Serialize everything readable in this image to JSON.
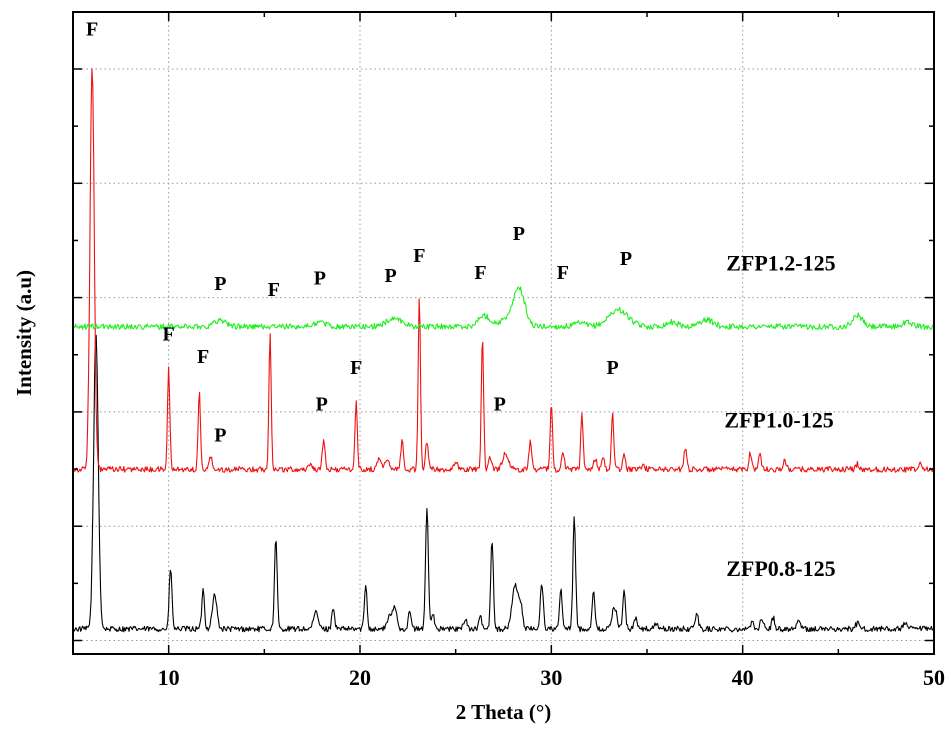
{
  "chart_data": {
    "type": "line",
    "xlabel": "2 Theta (°)",
    "ylabel": "Intensity (a.u)",
    "xlim": [
      5,
      50
    ],
    "x_ticks": [
      "10",
      "20",
      "30",
      "40",
      "50"
    ],
    "grid": true,
    "y_ticks_labeled": false,
    "series": [
      {
        "name": "ZFP0.8-125",
        "color": "#000000",
        "baseline": 0.0,
        "noise": 0.005,
        "peaks": [
          {
            "x": 6.2,
            "h": 0.53,
            "w": 0.12
          },
          {
            "x": 10.1,
            "h": 0.11,
            "w": 0.07
          },
          {
            "x": 11.8,
            "h": 0.07,
            "w": 0.07
          },
          {
            "x": 12.4,
            "h": 0.06,
            "w": 0.12
          },
          {
            "x": 15.6,
            "h": 0.16,
            "w": 0.07
          },
          {
            "x": 17.7,
            "h": 0.03,
            "w": 0.12
          },
          {
            "x": 18.6,
            "h": 0.04,
            "w": 0.07
          },
          {
            "x": 20.3,
            "h": 0.08,
            "w": 0.07
          },
          {
            "x": 21.5,
            "h": 0.02,
            "w": 0.1
          },
          {
            "x": 21.8,
            "h": 0.04,
            "w": 0.12
          },
          {
            "x": 22.6,
            "h": 0.03,
            "w": 0.08
          },
          {
            "x": 23.5,
            "h": 0.22,
            "w": 0.07
          },
          {
            "x": 23.8,
            "h": 0.03,
            "w": 0.08
          },
          {
            "x": 25.5,
            "h": 0.02,
            "w": 0.08
          },
          {
            "x": 26.3,
            "h": 0.02,
            "w": 0.08
          },
          {
            "x": 26.9,
            "h": 0.16,
            "w": 0.07
          },
          {
            "x": 28.1,
            "h": 0.08,
            "w": 0.15
          },
          {
            "x": 28.4,
            "h": 0.04,
            "w": 0.1
          },
          {
            "x": 29.5,
            "h": 0.08,
            "w": 0.08
          },
          {
            "x": 30.5,
            "h": 0.07,
            "w": 0.07
          },
          {
            "x": 31.2,
            "h": 0.2,
            "w": 0.07
          },
          {
            "x": 32.2,
            "h": 0.07,
            "w": 0.07
          },
          {
            "x": 33.3,
            "h": 0.04,
            "w": 0.12
          },
          {
            "x": 33.8,
            "h": 0.07,
            "w": 0.07
          },
          {
            "x": 34.4,
            "h": 0.02,
            "w": 0.08
          },
          {
            "x": 35.5,
            "h": 0.01,
            "w": 0.1
          },
          {
            "x": 37.6,
            "h": 0.03,
            "w": 0.08
          },
          {
            "x": 40.5,
            "h": 0.01,
            "w": 0.1
          },
          {
            "x": 41.0,
            "h": 0.02,
            "w": 0.08
          },
          {
            "x": 41.6,
            "h": 0.02,
            "w": 0.08
          },
          {
            "x": 42.9,
            "h": 0.015,
            "w": 0.1
          },
          {
            "x": 46.0,
            "h": 0.01,
            "w": 0.1
          },
          {
            "x": 48.5,
            "h": 0.01,
            "w": 0.1
          }
        ]
      },
      {
        "name": "ZFP1.0-125",
        "color": "#ee1111",
        "baseline": 0.285,
        "noise": 0.005,
        "peaks": [
          {
            "x": 6.0,
            "h": 0.72,
            "w": 0.11
          },
          {
            "x": 10.0,
            "h": 0.18,
            "w": 0.06
          },
          {
            "x": 11.6,
            "h": 0.14,
            "w": 0.06
          },
          {
            "x": 12.2,
            "h": 0.02,
            "w": 0.1
          },
          {
            "x": 15.3,
            "h": 0.24,
            "w": 0.06
          },
          {
            "x": 17.4,
            "h": 0.01,
            "w": 0.1
          },
          {
            "x": 18.1,
            "h": 0.05,
            "w": 0.07
          },
          {
            "x": 19.8,
            "h": 0.12,
            "w": 0.06
          },
          {
            "x": 21.0,
            "h": 0.02,
            "w": 0.1
          },
          {
            "x": 21.4,
            "h": 0.02,
            "w": 0.1
          },
          {
            "x": 22.2,
            "h": 0.05,
            "w": 0.07
          },
          {
            "x": 23.1,
            "h": 0.31,
            "w": 0.06
          },
          {
            "x": 23.5,
            "h": 0.05,
            "w": 0.07
          },
          {
            "x": 25.0,
            "h": 0.01,
            "w": 0.1
          },
          {
            "x": 26.4,
            "h": 0.24,
            "w": 0.06
          },
          {
            "x": 26.8,
            "h": 0.02,
            "w": 0.08
          },
          {
            "x": 27.6,
            "h": 0.03,
            "w": 0.15
          },
          {
            "x": 28.9,
            "h": 0.05,
            "w": 0.07
          },
          {
            "x": 30.0,
            "h": 0.12,
            "w": 0.06
          },
          {
            "x": 30.6,
            "h": 0.03,
            "w": 0.08
          },
          {
            "x": 31.6,
            "h": 0.1,
            "w": 0.06
          },
          {
            "x": 32.3,
            "h": 0.02,
            "w": 0.08
          },
          {
            "x": 32.7,
            "h": 0.02,
            "w": 0.08
          },
          {
            "x": 33.2,
            "h": 0.1,
            "w": 0.06
          },
          {
            "x": 33.8,
            "h": 0.03,
            "w": 0.07
          },
          {
            "x": 34.8,
            "h": 0.01,
            "w": 0.08
          },
          {
            "x": 37.0,
            "h": 0.04,
            "w": 0.07
          },
          {
            "x": 40.4,
            "h": 0.03,
            "w": 0.07
          },
          {
            "x": 40.9,
            "h": 0.03,
            "w": 0.07
          },
          {
            "x": 42.2,
            "h": 0.015,
            "w": 0.08
          },
          {
            "x": 46.0,
            "h": 0.01,
            "w": 0.08
          },
          {
            "x": 49.3,
            "h": 0.01,
            "w": 0.08
          }
        ]
      },
      {
        "name": "ZFP1.2-125",
        "color": "#22ee22",
        "baseline": 0.54,
        "noise": 0.005,
        "peaks": [
          {
            "x": 12.7,
            "h": 0.012,
            "w": 0.3
          },
          {
            "x": 17.9,
            "h": 0.008,
            "w": 0.3
          },
          {
            "x": 21.8,
            "h": 0.015,
            "w": 0.4
          },
          {
            "x": 26.5,
            "h": 0.02,
            "w": 0.3
          },
          {
            "x": 27.5,
            "h": 0.01,
            "w": 0.3
          },
          {
            "x": 28.3,
            "h": 0.07,
            "w": 0.3
          },
          {
            "x": 31.5,
            "h": 0.006,
            "w": 0.3
          },
          {
            "x": 33.5,
            "h": 0.03,
            "w": 0.5
          },
          {
            "x": 36.3,
            "h": 0.008,
            "w": 0.3
          },
          {
            "x": 38.1,
            "h": 0.012,
            "w": 0.35
          },
          {
            "x": 46.0,
            "h": 0.02,
            "w": 0.25
          },
          {
            "x": 48.6,
            "h": 0.008,
            "w": 0.25
          }
        ]
      }
    ],
    "peak_markers": [
      {
        "text": "F",
        "x": 6.0,
        "y": 1.06
      },
      {
        "text": "F",
        "x": 10.0,
        "y": 0.515
      },
      {
        "text": "F",
        "x": 11.8,
        "y": 0.475
      },
      {
        "text": "P",
        "x": 12.7,
        "y": 0.335
      },
      {
        "text": "F",
        "x": 15.5,
        "y": 0.595
      },
      {
        "text": "P",
        "x": 18.0,
        "y": 0.39
      },
      {
        "text": "F",
        "x": 19.8,
        "y": 0.455
      },
      {
        "text": "P",
        "x": 17.9,
        "y": 0.615
      },
      {
        "text": "P",
        "x": 21.6,
        "y": 0.62
      },
      {
        "text": "F",
        "x": 23.1,
        "y": 0.655
      },
      {
        "text": "P",
        "x": 12.7,
        "y": 0.605
      },
      {
        "text": "F",
        "x": 26.3,
        "y": 0.625
      },
      {
        "text": "P",
        "x": 27.3,
        "y": 0.39
      },
      {
        "text": "P",
        "x": 28.3,
        "y": 0.695
      },
      {
        "text": "F",
        "x": 30.6,
        "y": 0.625
      },
      {
        "text": "P",
        "x": 33.2,
        "y": 0.455
      },
      {
        "text": "P",
        "x": 33.9,
        "y": 0.65
      }
    ],
    "series_labels": [
      {
        "text": "ZFP1.2-125",
        "x": 42.0,
        "y": 0.64
      },
      {
        "text": "ZFP1.0-125",
        "x": 41.9,
        "y": 0.36
      },
      {
        "text": "ZFP0.8-125",
        "x": 42.0,
        "y": 0.095
      }
    ]
  }
}
